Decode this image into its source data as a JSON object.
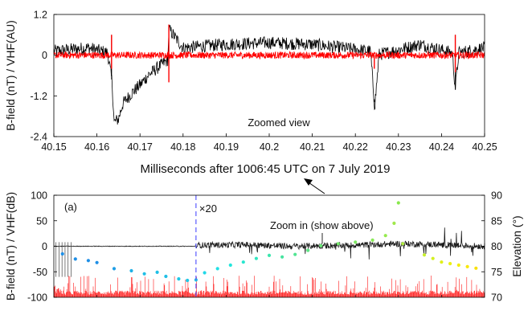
{
  "chart_data": [
    {
      "type": "line",
      "ylabel": "B-field (nT) / VHF(AU)",
      "xlabel": "Milliseconds after 1006:45 UTC on 7 July 2019",
      "annotation": "Zoomed view",
      "xlim": [
        40.15,
        40.25
      ],
      "ylim": [
        -2.4,
        1.2
      ],
      "x_ticks": [
        "40.15",
        "40.16",
        "40.17",
        "40.18",
        "40.19",
        "40.2",
        "40.21",
        "40.22",
        "40.23",
        "40.24",
        "40.25"
      ],
      "y_ticks": [
        "1.2",
        "0",
        "-1.2",
        "-2.4"
      ],
      "series": [
        {
          "color": "#000000",
          "points": [
            [
              40.15,
              0.1
            ],
            [
              40.158,
              0.2
            ],
            [
              40.1625,
              0.05
            ],
            [
              40.1635,
              -0.8
            ],
            [
              40.164,
              -2.0
            ],
            [
              40.165,
              -1.9
            ],
            [
              40.166,
              -1.45
            ],
            [
              40.168,
              -1.15
            ],
            [
              40.17,
              -0.9
            ],
            [
              40.172,
              -0.6
            ],
            [
              40.174,
              -0.4
            ],
            [
              40.1765,
              -0.15
            ],
            [
              40.1767,
              0.75
            ],
            [
              40.18,
              0.2
            ],
            [
              40.19,
              0.3
            ],
            [
              40.2,
              0.35
            ],
            [
              40.21,
              0.3
            ],
            [
              40.2235,
              0.1
            ],
            [
              40.2245,
              -1.55
            ],
            [
              40.2255,
              0.0
            ],
            [
              40.235,
              0.3
            ],
            [
              40.2425,
              0.05
            ],
            [
              40.2432,
              -1.0
            ],
            [
              40.244,
              0.05
            ],
            [
              40.25,
              0.2
            ]
          ],
          "spikes": [
            [
              40.1634,
              0.6
            ],
            [
              40.1767,
              0.9
            ],
            [
              40.2244,
              -1.3
            ],
            [
              40.2432,
              0.6
            ]
          ]
        },
        {
          "color": "#ff0000",
          "amplitude": 0.1,
          "spikes": [
            [
              40.1634,
              0.6
            ],
            [
              40.1634,
              -0.4
            ],
            [
              40.1767,
              0.9
            ],
            [
              40.1767,
              -0.8
            ],
            [
              40.2244,
              -0.4
            ],
            [
              40.2432,
              0.6
            ],
            [
              40.2432,
              -0.5
            ]
          ]
        }
      ]
    },
    {
      "type": "line",
      "panel_label": "(a)",
      "ylabel": "B-field (nT) / VHF(dB)",
      "y2label": "Elevation (°)",
      "annotation": "Zoom in (show above)",
      "marker_label": "×20",
      "ylim": [
        -100,
        100
      ],
      "y2lim": [
        70,
        90
      ],
      "y_ticks": [
        "100",
        "50",
        "0",
        "-50",
        "-100"
      ],
      "y2_ticks": [
        "90",
        "85",
        "80",
        "75",
        "70"
      ],
      "xlim": [
        0,
        100
      ],
      "marker_x": 33,
      "black_trace": {
        "points": [
          [
            0,
            0
          ],
          [
            4,
            0
          ],
          [
            33,
            0
          ],
          [
            33,
            2
          ],
          [
            45,
            3
          ],
          [
            55,
            0
          ],
          [
            70,
            2
          ],
          [
            80,
            5
          ],
          [
            90,
            3
          ],
          [
            100,
            0
          ]
        ],
        "noise": 6
      },
      "red_trace": {
        "level": -95,
        "noise": 8
      },
      "elevation_points": [
        [
          2,
          78.5
        ],
        [
          5,
          77.5
        ],
        [
          8,
          77.2
        ],
        [
          10,
          76.8
        ],
        [
          14,
          75.6
        ],
        [
          18,
          75.2
        ],
        [
          21,
          74.6
        ],
        [
          24,
          74.9
        ],
        [
          26,
          74.1
        ],
        [
          29,
          73.6
        ],
        [
          31,
          73.3
        ],
        [
          33,
          73.4
        ],
        [
          35,
          74.8
        ],
        [
          38,
          75.6
        ],
        [
          41,
          76.3
        ],
        [
          44,
          76.9
        ],
        [
          47,
          77.6
        ],
        [
          50,
          78.2
        ],
        [
          53,
          77.9
        ],
        [
          56,
          78.4
        ],
        [
          59,
          79.2
        ],
        [
          62,
          80.1
        ],
        [
          66,
          80.5
        ],
        [
          70,
          80.8
        ],
        [
          74,
          81.2
        ],
        [
          77,
          82.1
        ],
        [
          79,
          84.5
        ],
        [
          80,
          88.5
        ],
        [
          81,
          80.5
        ],
        [
          86,
          78.3
        ],
        [
          88,
          77.6
        ],
        [
          90,
          76.9
        ],
        [
          92,
          76.6
        ],
        [
          94,
          76.3
        ],
        [
          96,
          76.0
        ],
        [
          98,
          75.7
        ]
      ],
      "elevation_colors": [
        "#1f8fe6",
        "#1f8fe6",
        "#1f8fe6",
        "#1f8fe6",
        "#1f9ee6",
        "#1fb0e6",
        "#1fbfe6",
        "#1fbfe6",
        "#1fbfe6",
        "#1fc8e6",
        "#1fc8e6",
        "#1fc8e6",
        "#22d8e8",
        "#22e0e6",
        "#22e6dc",
        "#28e6cf",
        "#30e6c0",
        "#3ce6ae",
        "#46e39f",
        "#52e492",
        "#5ee685",
        "#6ae877",
        "#74e86c",
        "#7ee962",
        "#8aea58",
        "#96ea4e",
        "#9fe84a",
        "#88e84c",
        "#b0ec40",
        "#c8f02a",
        "#d4f022",
        "#e0f01a",
        "#ecf012",
        "#f4ec0c",
        "#f8e80a",
        "#f8e00a"
      ]
    }
  ]
}
